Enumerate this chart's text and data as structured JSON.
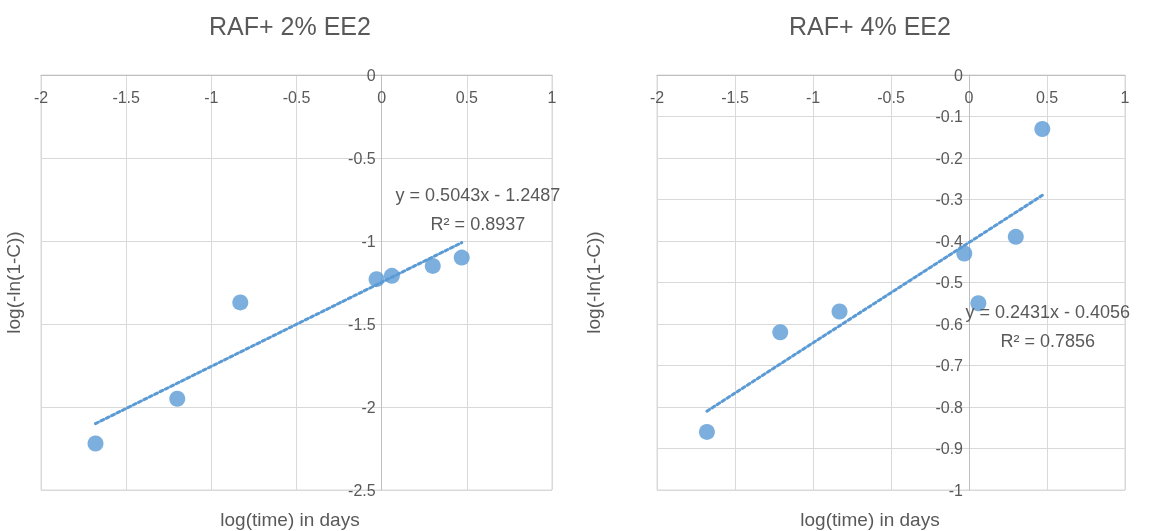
{
  "chart_data": [
    {
      "type": "scatter",
      "title": "RAF+ 2% EE2",
      "xlabel": "log(time) in days",
      "ylabel": "log(-ln(1-C))",
      "xlim": [
        -2,
        1
      ],
      "xticks": [
        -2,
        -1.5,
        -1,
        -0.5,
        0,
        0.5,
        1
      ],
      "ylim": [
        -2.5,
        0
      ],
      "yticks": [
        -2.5,
        -2,
        -1.5,
        -1,
        -0.5,
        0
      ],
      "grid": true,
      "marker": "circle",
      "series": [
        {
          "type": "scatter",
          "color": "#5b9bd5",
          "x": [
            -1.68,
            -1.2,
            -0.83,
            -0.03,
            0.06,
            0.3,
            0.47
          ],
          "values": [
            -2.22,
            -1.95,
            -1.37,
            -1.23,
            -1.21,
            -1.15,
            -1.1
          ]
        },
        {
          "type": "line",
          "color": "#5b9bd5",
          "line_style": "dotted",
          "marker": "none",
          "x": [
            -1.68,
            0.47
          ],
          "values": [
            -2.1,
            -1.01
          ]
        }
      ],
      "annotations": [
        "y = 0.5043x - 1.2487",
        "R² = 0.8937"
      ]
    },
    {
      "type": "scatter",
      "title": "RAF+ 4% EE2",
      "xlabel": "log(time) in days",
      "ylabel": "log(-ln(1-C))",
      "xlim": [
        -2,
        1
      ],
      "xticks": [
        -2,
        -1.5,
        -1,
        -0.5,
        0,
        0.5,
        1
      ],
      "ylim": [
        -1,
        0
      ],
      "yticks": [
        -1,
        -0.9,
        -0.8,
        -0.7,
        -0.6,
        -0.5,
        -0.4,
        -0.3,
        -0.2,
        -0.1,
        0
      ],
      "grid": true,
      "marker": "circle",
      "series": [
        {
          "type": "scatter",
          "color": "#5b9bd5",
          "x": [
            -1.68,
            -1.21,
            -0.83,
            -0.03,
            0.06,
            0.3,
            0.47
          ],
          "values": [
            -0.86,
            -0.62,
            -0.57,
            -0.43,
            -0.55,
            -0.39,
            -0.13
          ]
        },
        {
          "type": "line",
          "color": "#5b9bd5",
          "line_style": "dotted",
          "marker": "none",
          "x": [
            -1.68,
            0.47
          ],
          "values": [
            -0.81,
            -0.29
          ]
        }
      ],
      "annotations": [
        "y = 0.2431x - 0.4056",
        "R² = 0.7856"
      ]
    }
  ]
}
